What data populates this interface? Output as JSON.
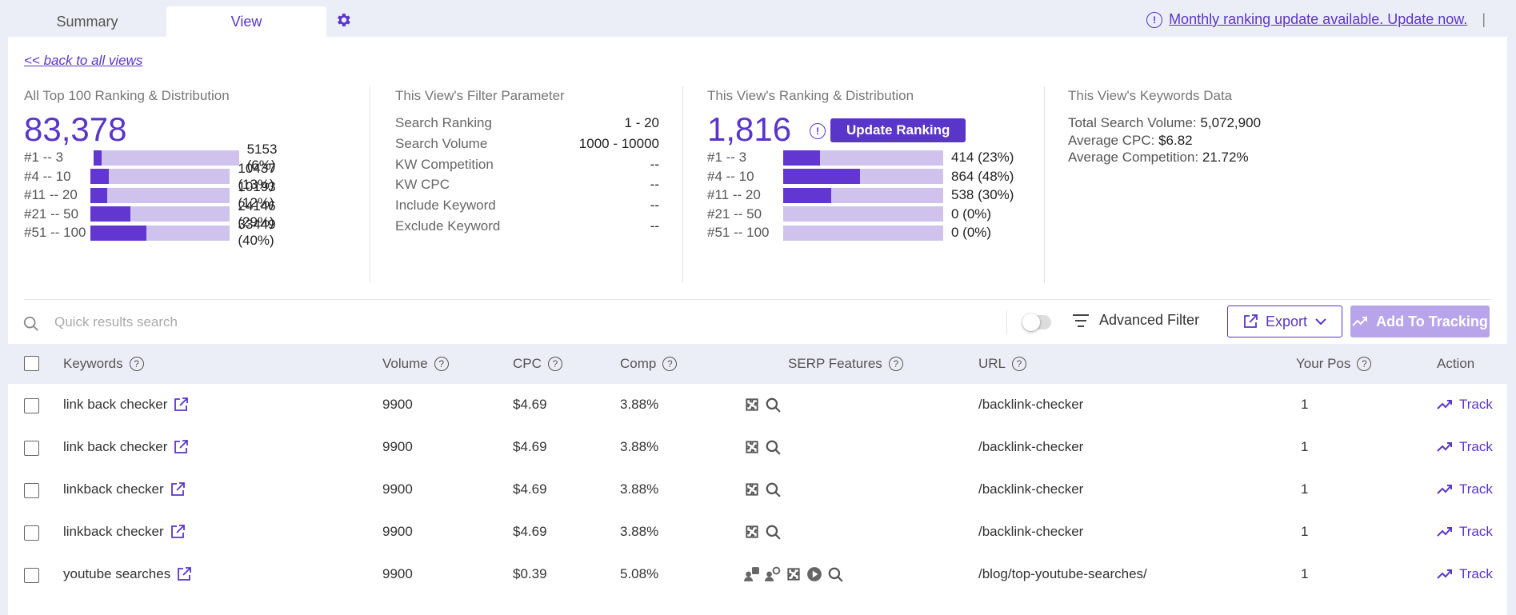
{
  "tabs": [
    {
      "label": "Summary"
    },
    {
      "label": "View"
    }
  ],
  "notice": {
    "text": "Monthly ranking update available. Update now.",
    "separator": "|"
  },
  "back_link": "<< back to all views",
  "all_top100": {
    "title": "All Top 100 Ranking & Distribution",
    "total": "83,378",
    "rows": [
      {
        "label": "#1 -- 3",
        "value": "5153 (6%)",
        "fraction": 0.06
      },
      {
        "label": "#4 -- 10",
        "value": "10437 (13%)",
        "fraction": 0.13
      },
      {
        "label": "#11 -- 20",
        "value": "10193 (12%)",
        "fraction": 0.12
      },
      {
        "label": "#21 -- 50",
        "value": "24146 (29%)",
        "fraction": 0.29
      },
      {
        "label": "#51 -- 100",
        "value": "33449 (40%)",
        "fraction": 0.4
      }
    ]
  },
  "filter_params": {
    "title": "This View's Filter Parameter",
    "rows": [
      {
        "key": "Search Ranking",
        "value": "1 - 20"
      },
      {
        "key": "Search Volume",
        "value": "1000 - 10000"
      },
      {
        "key": "KW Competition",
        "value": "--"
      },
      {
        "key": "KW CPC",
        "value": "--"
      },
      {
        "key": "Include Keyword",
        "value": "--"
      },
      {
        "key": "Exclude Keyword",
        "value": "--"
      }
    ]
  },
  "view_ranking": {
    "title": "This View's Ranking & Distribution",
    "total": "1,816",
    "update_label": "Update Ranking",
    "rows": [
      {
        "label": "#1 -- 3",
        "value": "414 (23%)",
        "fraction": 0.23
      },
      {
        "label": "#4 -- 10",
        "value": "864 (48%)",
        "fraction": 0.48
      },
      {
        "label": "#11 -- 20",
        "value": "538 (30%)",
        "fraction": 0.3
      },
      {
        "label": "#21 -- 50",
        "value": "0 (0%)",
        "fraction": 0
      },
      {
        "label": "#51 -- 100",
        "value": "0 (0%)",
        "fraction": 0
      }
    ]
  },
  "kw_data": {
    "title": "This View's Keywords Data",
    "rows": [
      {
        "key": "Total Search Volume:",
        "value": "5,072,900"
      },
      {
        "key": "Average CPC:",
        "value": "$6.82"
      },
      {
        "key": "Average Competition:",
        "value": "21.72%"
      }
    ]
  },
  "search": {
    "placeholder": "Quick results search"
  },
  "toolbar": {
    "advanced_filter": "Advanced Filter",
    "export": "Export",
    "add_tracking": "Add To Tracking"
  },
  "columns": {
    "keywords": "Keywords",
    "volume": "Volume",
    "cpc": "CPC",
    "comp": "Comp",
    "serp": "SERP Features",
    "url": "URL",
    "pos": "Your Pos",
    "action": "Action"
  },
  "rows": [
    {
      "keyword": "link back checker",
      "volume": "9900",
      "cpc": "$4.69",
      "comp": "3.88%",
      "serp": [
        "puzzle-icon",
        "search-icon"
      ],
      "url": "/backlink-checker",
      "pos": "1",
      "action": "Track"
    },
    {
      "keyword": "link back checker",
      "volume": "9900",
      "cpc": "$4.69",
      "comp": "3.88%",
      "serp": [
        "puzzle-icon",
        "search-icon"
      ],
      "url": "/backlink-checker",
      "pos": "1",
      "action": "Track"
    },
    {
      "keyword": "linkback checker",
      "volume": "9900",
      "cpc": "$4.69",
      "comp": "3.88%",
      "serp": [
        "puzzle-icon",
        "search-icon"
      ],
      "url": "/backlink-checker",
      "pos": "1",
      "action": "Track"
    },
    {
      "keyword": "linkback checker",
      "volume": "9900",
      "cpc": "$4.69",
      "comp": "3.88%",
      "serp": [
        "puzzle-icon",
        "search-icon"
      ],
      "url": "/backlink-checker",
      "pos": "1",
      "action": "Track"
    },
    {
      "keyword": "youtube searches",
      "volume": "9900",
      "cpc": "$0.39",
      "comp": "5.08%",
      "serp": [
        "people-ask-icon",
        "people-search-icon",
        "puzzle-icon",
        "video-icon",
        "search-icon"
      ],
      "url": "/blog/top-youtube-searches/",
      "pos": "1",
      "action": "Track"
    }
  ]
}
